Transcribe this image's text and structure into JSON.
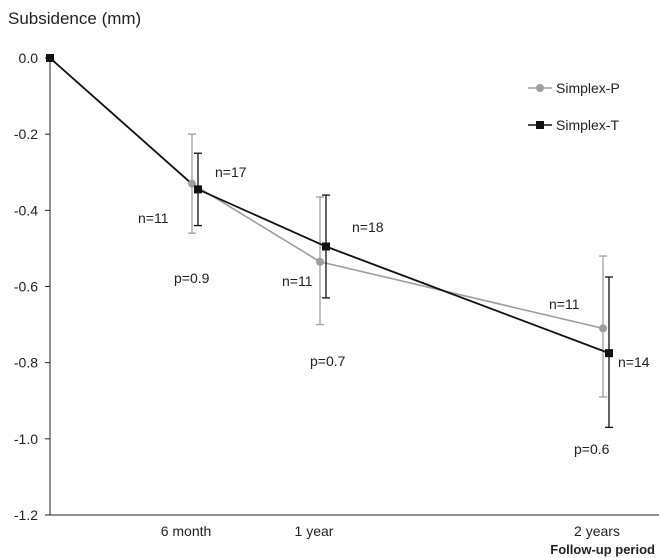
{
  "chart_data": {
    "type": "line",
    "title": "Subsidence (mm)",
    "xlabel": "Follow-up period",
    "ylabel": "",
    "categories": [
      "",
      "6 month",
      "1 year",
      "2 years"
    ],
    "x": [
      0,
      6,
      12,
      24
    ],
    "ylim": [
      -1.2,
      0.0
    ],
    "yticks": [
      0.0,
      -0.2,
      -0.4,
      -0.6,
      -0.8,
      -1.0,
      -1.2
    ],
    "ytick_labels": [
      "0.0",
      "-0.2",
      "-0.4",
      "-0.6",
      "-0.8",
      "-1.0",
      "-1.2"
    ],
    "grid": false,
    "legend_position": "top-right",
    "series": [
      {
        "name": "Simplex-P",
        "color": "#9e9e9e",
        "marker": "circle",
        "values": [
          0.0,
          -0.33,
          -0.535,
          -0.71
        ],
        "err_upper": [
          0.0,
          -0.2,
          -0.365,
          -0.52
        ],
        "err_lower": [
          0.0,
          -0.46,
          -0.7,
          -0.89
        ],
        "n_labels": [
          "",
          "n=11",
          "n=11",
          "n=11"
        ]
      },
      {
        "name": "Simplex-T",
        "color": "#111111",
        "marker": "square",
        "values": [
          0.0,
          -0.345,
          -0.495,
          -0.775
        ],
        "err_upper": [
          0.0,
          -0.25,
          -0.36,
          -0.575
        ],
        "err_lower": [
          0.0,
          -0.44,
          -0.63,
          -0.97
        ],
        "n_labels": [
          "",
          "n=17",
          "n=18",
          "n=14"
        ]
      }
    ],
    "p_values": [
      "",
      "p=0.9",
      "p=0.7",
      "p=0.6"
    ]
  }
}
